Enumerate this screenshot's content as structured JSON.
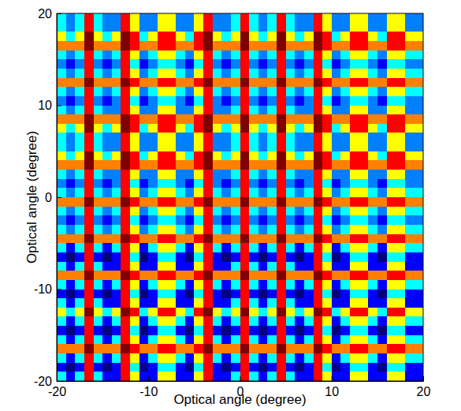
{
  "chart_data": {
    "type": "heatmap",
    "x_label": "Optical angle (degree)",
    "y_label": "Optical angle (degree)",
    "xlim": [
      -20,
      20
    ],
    "ylim": [
      -20,
      20
    ],
    "xticks": [
      -20,
      -10,
      0,
      10,
      20
    ],
    "yticks": [
      -20,
      -10,
      0,
      10,
      20
    ],
    "x": [
      -19.5,
      -18.5,
      -17.5,
      -16.5,
      -15.5,
      -14.5,
      -13.5,
      -12.5,
      -11.5,
      -10.5,
      -9.5,
      -8.5,
      -7.5,
      -6.5,
      -5.5,
      -4.5,
      -3.5,
      -2.5,
      -1.5,
      -0.5,
      0.5,
      1.5,
      2.5,
      3.5,
      4.5,
      5.5,
      6.5,
      7.5,
      8.5,
      9.5,
      10.5,
      11.5,
      12.5,
      13.5,
      14.5,
      15.5,
      16.5,
      17.5,
      18.5,
      19.5
    ],
    "y": [
      19.5,
      18.5,
      17.5,
      16.5,
      15.5,
      14.5,
      13.5,
      12.5,
      11.5,
      10.5,
      9.5,
      8.5,
      7.5,
      6.5,
      5.5,
      4.5,
      3.5,
      2.5,
      1.5,
      0.5,
      -0.5,
      -1.5,
      -2.5,
      -3.5,
      -4.5,
      -5.5,
      -6.5,
      -7.5,
      -8.5,
      -9.5,
      -10.5,
      -11.5,
      -12.5,
      -13.5,
      -14.5,
      -15.5,
      -16.5,
      -17.5,
      -18.5,
      -19.5
    ],
    "cells": [
      [
        4,
        3,
        4,
        8,
        4,
        3,
        3,
        8,
        6,
        3,
        3,
        6,
        6,
        3,
        3,
        6,
        8,
        3,
        3,
        4,
        8,
        4,
        3,
        4,
        8,
        4,
        3,
        3,
        8,
        6,
        3,
        3,
        6,
        6,
        3,
        3,
        6,
        6,
        3,
        3
      ],
      [
        4,
        3,
        4,
        8,
        4,
        3,
        3,
        8,
        6,
        3,
        3,
        6,
        6,
        3,
        3,
        6,
        8,
        3,
        3,
        4,
        8,
        4,
        3,
        4,
        8,
        4,
        3,
        3,
        8,
        6,
        3,
        3,
        6,
        6,
        3,
        3,
        6,
        6,
        3,
        3
      ],
      [
        6,
        4,
        6,
        9,
        6,
        4,
        6,
        9,
        8,
        4,
        6,
        8,
        8,
        6,
        4,
        8,
        9,
        6,
        4,
        6,
        9,
        6,
        4,
        6,
        9,
        6,
        4,
        6,
        9,
        8,
        4,
        6,
        8,
        8,
        6,
        4,
        8,
        8,
        6,
        6
      ],
      [
        7,
        7,
        7,
        9,
        7,
        7,
        7,
        9,
        8,
        7,
        7,
        8,
        8,
        7,
        7,
        8,
        9,
        7,
        7,
        7,
        9,
        7,
        7,
        7,
        9,
        7,
        7,
        7,
        9,
        8,
        7,
        7,
        8,
        8,
        7,
        7,
        8,
        8,
        7,
        7
      ],
      [
        4,
        3,
        4,
        8,
        4,
        3,
        4,
        8,
        6,
        3,
        4,
        6,
        6,
        4,
        3,
        6,
        8,
        4,
        3,
        4,
        8,
        4,
        3,
        4,
        8,
        4,
        3,
        4,
        8,
        6,
        3,
        4,
        6,
        6,
        4,
        3,
        6,
        6,
        4,
        4
      ],
      [
        3,
        2,
        3,
        8,
        3,
        2,
        3,
        8,
        4,
        2,
        3,
        4,
        4,
        3,
        2,
        4,
        8,
        3,
        2,
        3,
        8,
        3,
        2,
        3,
        8,
        3,
        2,
        3,
        8,
        4,
        2,
        3,
        4,
        4,
        3,
        2,
        4,
        4,
        3,
        3
      ],
      [
        4,
        3,
        4,
        8,
        4,
        3,
        4,
        8,
        6,
        3,
        4,
        6,
        6,
        4,
        3,
        6,
        8,
        4,
        3,
        4,
        8,
        4,
        3,
        4,
        8,
        4,
        3,
        4,
        8,
        6,
        3,
        4,
        6,
        6,
        4,
        3,
        6,
        6,
        4,
        4
      ],
      [
        7,
        7,
        7,
        9,
        7,
        7,
        7,
        9,
        8,
        7,
        7,
        8,
        8,
        7,
        7,
        8,
        9,
        7,
        7,
        7,
        9,
        7,
        7,
        7,
        9,
        7,
        7,
        7,
        9,
        8,
        7,
        7,
        8,
        8,
        7,
        7,
        8,
        8,
        7,
        7
      ],
      [
        4,
        3,
        4,
        8,
        4,
        3,
        4,
        8,
        6,
        3,
        4,
        6,
        6,
        4,
        3,
        6,
        8,
        4,
        3,
        4,
        8,
        4,
        3,
        4,
        8,
        4,
        3,
        4,
        8,
        6,
        3,
        4,
        6,
        6,
        4,
        3,
        6,
        6,
        4,
        4
      ],
      [
        3,
        2,
        3,
        8,
        3,
        2,
        3,
        8,
        4,
        2,
        3,
        4,
        4,
        3,
        2,
        4,
        8,
        3,
        2,
        3,
        8,
        3,
        2,
        3,
        8,
        3,
        2,
        3,
        8,
        4,
        2,
        3,
        4,
        4,
        3,
        2,
        4,
        4,
        3,
        3
      ],
      [
        4,
        3,
        4,
        8,
        4,
        3,
        3,
        8,
        6,
        3,
        3,
        6,
        6,
        3,
        3,
        6,
        8,
        3,
        3,
        4,
        8,
        4,
        3,
        4,
        8,
        4,
        3,
        3,
        8,
        6,
        3,
        3,
        6,
        6,
        3,
        3,
        6,
        6,
        3,
        3
      ],
      [
        7,
        7,
        7,
        9,
        7,
        7,
        7,
        9,
        8,
        7,
        7,
        8,
        8,
        7,
        7,
        8,
        9,
        7,
        7,
        7,
        9,
        7,
        7,
        7,
        9,
        7,
        7,
        7,
        9,
        8,
        7,
        7,
        8,
        8,
        7,
        7,
        8,
        8,
        7,
        7
      ],
      [
        6,
        4,
        6,
        9,
        6,
        4,
        6,
        9,
        8,
        4,
        6,
        8,
        8,
        6,
        4,
        8,
        9,
        6,
        4,
        6,
        9,
        6,
        4,
        6,
        9,
        6,
        4,
        6,
        9,
        8,
        4,
        6,
        8,
        8,
        6,
        4,
        8,
        8,
        6,
        6
      ],
      [
        4,
        3,
        4,
        8,
        4,
        3,
        3,
        8,
        6,
        3,
        3,
        6,
        6,
        3,
        3,
        6,
        8,
        3,
        3,
        4,
        8,
        4,
        3,
        4,
        8,
        4,
        3,
        3,
        8,
        6,
        3,
        3,
        6,
        6,
        3,
        3,
        6,
        6,
        3,
        3
      ],
      [
        4,
        3,
        4,
        8,
        4,
        3,
        3,
        8,
        6,
        3,
        3,
        6,
        6,
        3,
        3,
        6,
        8,
        3,
        3,
        4,
        8,
        4,
        3,
        4,
        8,
        4,
        3,
        3,
        8,
        6,
        3,
        3,
        6,
        6,
        3,
        3,
        6,
        6,
        3,
        3
      ],
      [
        6,
        4,
        6,
        9,
        6,
        4,
        6,
        9,
        8,
        4,
        6,
        8,
        8,
        6,
        4,
        8,
        9,
        6,
        4,
        6,
        9,
        6,
        4,
        6,
        9,
        6,
        4,
        6,
        9,
        8,
        4,
        6,
        8,
        8,
        6,
        4,
        8,
        8,
        6,
        6
      ],
      [
        7,
        7,
        7,
        9,
        7,
        7,
        7,
        9,
        8,
        7,
        7,
        8,
        8,
        7,
        7,
        8,
        9,
        7,
        7,
        7,
        9,
        7,
        7,
        7,
        9,
        7,
        7,
        7,
        9,
        8,
        7,
        7,
        8,
        8,
        7,
        7,
        8,
        8,
        7,
        7
      ],
      [
        4,
        3,
        4,
        8,
        4,
        3,
        3,
        8,
        6,
        3,
        3,
        6,
        6,
        3,
        3,
        6,
        8,
        3,
        3,
        4,
        8,
        4,
        3,
        4,
        8,
        4,
        3,
        3,
        8,
        6,
        3,
        3,
        6,
        6,
        3,
        3,
        6,
        6,
        3,
        3
      ],
      [
        3,
        2,
        3,
        8,
        3,
        2,
        3,
        8,
        4,
        2,
        3,
        4,
        4,
        3,
        2,
        4,
        8,
        3,
        2,
        3,
        8,
        3,
        2,
        3,
        8,
        3,
        2,
        3,
        8,
        4,
        2,
        3,
        4,
        4,
        3,
        2,
        4,
        4,
        3,
        3
      ],
      [
        4,
        3,
        4,
        8,
        4,
        3,
        4,
        8,
        6,
        3,
        4,
        6,
        6,
        4,
        3,
        6,
        8,
        4,
        3,
        4,
        8,
        4,
        3,
        4,
        8,
        4,
        3,
        4,
        8,
        6,
        3,
        4,
        6,
        6,
        4,
        3,
        6,
        6,
        4,
        4
      ],
      [
        7,
        7,
        7,
        9,
        7,
        7,
        7,
        9,
        8,
        7,
        7,
        8,
        8,
        7,
        7,
        8,
        9,
        7,
        7,
        7,
        9,
        7,
        7,
        7,
        9,
        7,
        7,
        7,
        9,
        8,
        7,
        7,
        8,
        8,
        7,
        7,
        8,
        8,
        7,
        7
      ],
      [
        4,
        3,
        4,
        8,
        4,
        3,
        4,
        8,
        6,
        3,
        4,
        6,
        6,
        4,
        3,
        6,
        8,
        4,
        3,
        4,
        8,
        4,
        3,
        4,
        8,
        4,
        3,
        4,
        8,
        6,
        3,
        4,
        6,
        6,
        4,
        3,
        6,
        6,
        4,
        4
      ],
      [
        3,
        2,
        3,
        8,
        3,
        2,
        3,
        8,
        4,
        2,
        3,
        4,
        4,
        3,
        2,
        4,
        8,
        3,
        2,
        3,
        8,
        3,
        2,
        3,
        8,
        3,
        2,
        3,
        8,
        4,
        2,
        3,
        4,
        4,
        3,
        2,
        4,
        4,
        3,
        3
      ],
      [
        4,
        3,
        4,
        8,
        4,
        3,
        4,
        8,
        6,
        3,
        4,
        6,
        6,
        4,
        3,
        6,
        8,
        4,
        3,
        4,
        8,
        4,
        3,
        4,
        8,
        4,
        3,
        4,
        8,
        6,
        3,
        4,
        6,
        6,
        4,
        3,
        6,
        6,
        4,
        4
      ],
      [
        7,
        7,
        7,
        9,
        7,
        7,
        7,
        9,
        8,
        7,
        7,
        8,
        8,
        7,
        7,
        8,
        9,
        7,
        7,
        7,
        9,
        7,
        7,
        7,
        9,
        7,
        7,
        7,
        9,
        8,
        7,
        7,
        8,
        8,
        7,
        7,
        8,
        8,
        7,
        7
      ],
      [
        4,
        2,
        4,
        8,
        4,
        2,
        4,
        8,
        6,
        2,
        4,
        6,
        6,
        4,
        2,
        6,
        8,
        4,
        2,
        4,
        8,
        4,
        2,
        4,
        8,
        4,
        2,
        4,
        8,
        6,
        2,
        4,
        6,
        6,
        4,
        2,
        6,
        6,
        4,
        4
      ],
      [
        2,
        1,
        2,
        8,
        2,
        1,
        2,
        8,
        4,
        1,
        2,
        4,
        4,
        2,
        1,
        4,
        8,
        2,
        1,
        2,
        8,
        2,
        1,
        2,
        8,
        2,
        1,
        2,
        8,
        4,
        1,
        2,
        4,
        4,
        2,
        1,
        4,
        4,
        2,
        2
      ],
      [
        4,
        2,
        4,
        8,
        4,
        2,
        2,
        8,
        6,
        2,
        2,
        6,
        6,
        2,
        2,
        6,
        8,
        2,
        2,
        4,
        8,
        4,
        2,
        4,
        8,
        4,
        2,
        2,
        8,
        6,
        2,
        2,
        6,
        6,
        2,
        2,
        6,
        6,
        2,
        2
      ],
      [
        7,
        7,
        7,
        9,
        7,
        7,
        7,
        9,
        8,
        7,
        7,
        8,
        8,
        7,
        7,
        8,
        9,
        7,
        7,
        7,
        9,
        7,
        7,
        7,
        9,
        7,
        7,
        7,
        9,
        8,
        7,
        7,
        8,
        8,
        7,
        7,
        8,
        8,
        7,
        7
      ],
      [
        4,
        2,
        4,
        8,
        4,
        2,
        4,
        8,
        6,
        2,
        4,
        6,
        6,
        4,
        2,
        6,
        8,
        4,
        2,
        4,
        8,
        4,
        2,
        4,
        8,
        4,
        2,
        4,
        8,
        6,
        2,
        4,
        6,
        6,
        4,
        2,
        6,
        6,
        4,
        4
      ],
      [
        2,
        1,
        2,
        8,
        2,
        1,
        2,
        8,
        4,
        1,
        2,
        4,
        4,
        2,
        1,
        4,
        8,
        2,
        1,
        2,
        8,
        2,
        1,
        2,
        8,
        2,
        1,
        2,
        8,
        4,
        1,
        2,
        4,
        4,
        2,
        1,
        4,
        4,
        2,
        2
      ],
      [
        4,
        2,
        4,
        8,
        4,
        2,
        2,
        8,
        6,
        2,
        2,
        6,
        6,
        2,
        2,
        6,
        8,
        2,
        2,
        4,
        8,
        4,
        2,
        4,
        8,
        4,
        2,
        2,
        8,
        6,
        2,
        2,
        6,
        6,
        2,
        2,
        6,
        6,
        2,
        2
      ],
      [
        6,
        4,
        6,
        9,
        6,
        4,
        6,
        9,
        8,
        4,
        6,
        8,
        8,
        6,
        4,
        8,
        9,
        6,
        4,
        6,
        9,
        6,
        4,
        6,
        9,
        6,
        4,
        6,
        9,
        8,
        4,
        6,
        8,
        8,
        6,
        4,
        8,
        8,
        6,
        6
      ],
      [
        4,
        2,
        4,
        8,
        4,
        2,
        4,
        8,
        6,
        2,
        4,
        6,
        6,
        4,
        2,
        6,
        8,
        4,
        2,
        4,
        8,
        4,
        2,
        4,
        8,
        4,
        2,
        4,
        8,
        6,
        2,
        4,
        6,
        6,
        4,
        2,
        6,
        6,
        4,
        4
      ],
      [
        2,
        1,
        2,
        8,
        2,
        1,
        2,
        8,
        4,
        1,
        2,
        4,
        4,
        2,
        1,
        4,
        8,
        2,
        1,
        2,
        8,
        2,
        1,
        2,
        8,
        2,
        1,
        2,
        8,
        4,
        1,
        2,
        4,
        4,
        2,
        1,
        4,
        4,
        2,
        2
      ],
      [
        4,
        2,
        4,
        8,
        4,
        2,
        4,
        8,
        6,
        2,
        4,
        6,
        6,
        4,
        2,
        6,
        8,
        4,
        2,
        4,
        8,
        4,
        2,
        4,
        8,
        4,
        2,
        4,
        8,
        6,
        2,
        4,
        6,
        6,
        4,
        2,
        6,
        6,
        4,
        4
      ],
      [
        7,
        7,
        7,
        9,
        7,
        7,
        7,
        9,
        8,
        7,
        7,
        8,
        8,
        7,
        7,
        8,
        9,
        7,
        7,
        7,
        9,
        7,
        7,
        7,
        9,
        7,
        7,
        7,
        9,
        8,
        7,
        7,
        8,
        8,
        7,
        7,
        8,
        8,
        7,
        7
      ],
      [
        4,
        2,
        4,
        8,
        4,
        2,
        4,
        8,
        6,
        2,
        4,
        6,
        6,
        4,
        2,
        6,
        8,
        4,
        2,
        4,
        8,
        4,
        2,
        4,
        8,
        4,
        2,
        4,
        8,
        6,
        2,
        4,
        6,
        6,
        4,
        2,
        6,
        6,
        4,
        4
      ],
      [
        2,
        1,
        2,
        8,
        2,
        1,
        2,
        8,
        4,
        1,
        2,
        4,
        4,
        2,
        1,
        4,
        8,
        2,
        1,
        2,
        8,
        2,
        1,
        2,
        8,
        2,
        1,
        2,
        8,
        4,
        1,
        2,
        4,
        4,
        2,
        1,
        4,
        4,
        2,
        2
      ],
      [
        4,
        2,
        4,
        8,
        4,
        2,
        2,
        8,
        6,
        2,
        2,
        6,
        6,
        2,
        2,
        6,
        8,
        2,
        2,
        4,
        8,
        4,
        2,
        4,
        8,
        4,
        2,
        2,
        8,
        6,
        2,
        2,
        6,
        6,
        2,
        2,
        6,
        6,
        2,
        2
      ]
    ]
  }
}
